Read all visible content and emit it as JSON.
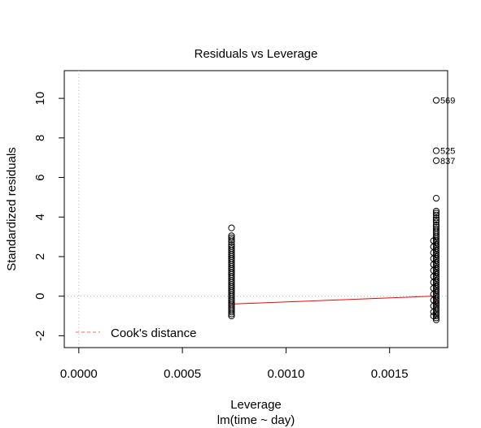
{
  "chart_data": {
    "type": "scatter",
    "title": "Residuals vs Leverage",
    "xlabel": "Leverage",
    "subtitle": "lm(time ~ day)",
    "ylabel": "Standardized residuals",
    "xlim": [
      -7e-05,
      0.00178
    ],
    "ylim": [
      -2.6,
      11.4
    ],
    "x_ticks": [
      {
        "value": 0,
        "label": "0.0000"
      },
      {
        "value": 0.0005,
        "label": "0.0005"
      },
      {
        "value": 0.001,
        "label": "0.0010"
      },
      {
        "value": 0.0015,
        "label": "0.0015"
      }
    ],
    "y_ticks": [
      {
        "value": -2,
        "label": "-2"
      },
      {
        "value": 0,
        "label": "0"
      },
      {
        "value": 2,
        "label": "2"
      },
      {
        "value": 4,
        "label": "4"
      },
      {
        "value": 6,
        "label": "6"
      },
      {
        "value": 8,
        "label": "8"
      },
      {
        "value": 10,
        "label": "10"
      }
    ],
    "clusters": [
      {
        "x": 0.000737,
        "residuals": [
          3.45,
          3.05,
          2.95,
          2.85,
          2.75,
          2.6,
          2.5,
          2.4,
          2.3,
          2.2,
          2.1,
          2.0,
          1.9,
          1.8,
          1.7,
          1.6,
          1.5,
          1.4,
          1.3,
          1.2,
          1.1,
          1.0,
          0.9,
          0.8,
          0.7,
          0.6,
          0.5,
          0.4,
          0.3,
          0.2,
          0.1,
          0.0,
          -0.1,
          -0.2,
          -0.3,
          -0.4,
          -0.5,
          -0.6,
          -0.7,
          -0.8,
          -0.9,
          -1.0
        ]
      },
      {
        "x": 0.001725,
        "residuals": [
          4.95,
          4.3,
          4.2,
          4.1,
          3.95,
          3.85,
          3.75,
          3.6,
          3.5,
          3.4,
          3.3,
          3.2,
          3.1,
          3.0,
          2.9,
          2.8,
          2.7,
          2.6,
          2.5,
          2.4,
          2.3,
          2.2,
          2.1,
          2.0,
          1.9,
          1.8,
          1.7,
          1.6,
          1.5,
          1.4,
          1.3,
          1.2,
          1.1,
          1.0,
          0.9,
          0.8,
          0.7,
          0.6,
          0.5,
          0.4,
          0.3,
          0.2,
          0.1,
          0.0,
          -0.1,
          -0.2,
          -0.3,
          -0.4,
          -0.5,
          -0.6,
          -0.7,
          -0.8,
          -0.9,
          -1.0,
          -1.1,
          -1.2
        ]
      },
      {
        "x": 0.001712,
        "residuals": [
          2.8,
          2.5,
          2.2,
          1.9,
          1.6,
          1.3,
          1.0,
          0.7,
          0.4,
          0.1,
          -0.2,
          -0.5,
          -0.8,
          -1.0
        ]
      }
    ],
    "labeled_points": [
      {
        "x": 0.001725,
        "y": 9.9,
        "label": "569"
      },
      {
        "x": 0.001725,
        "y": 7.35,
        "label": "525"
      },
      {
        "x": 0.001725,
        "y": 6.85,
        "label": "837"
      }
    ],
    "smoother": {
      "color": "#ff0000",
      "x": [
        0.000737,
        0.00171,
        0.00172,
        0.00173
      ],
      "y": [
        -0.4,
        0.0,
        -0.2,
        -0.5
      ]
    },
    "reference_lines": {
      "h": 0,
      "v": 0,
      "style": "dotted",
      "color": "#bbbbbb"
    },
    "legend": {
      "position": "bottom-left",
      "entries": [
        {
          "label": "Cook's distance",
          "color": "#ff6060",
          "style": "dashed"
        }
      ]
    },
    "grid": false
  }
}
